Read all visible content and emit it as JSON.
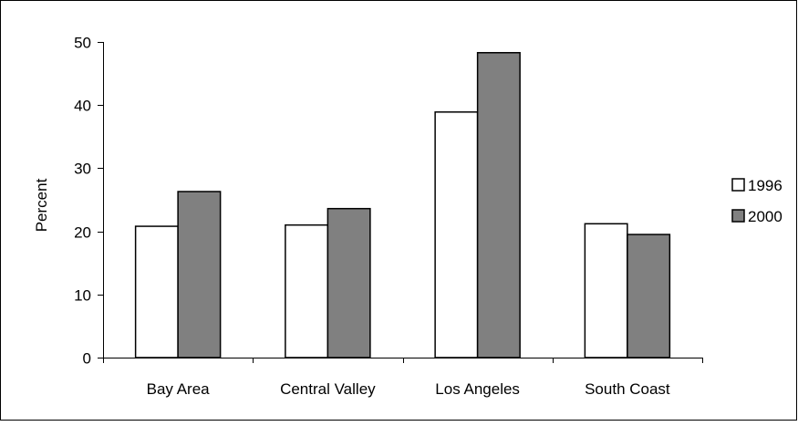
{
  "chart_data": {
    "type": "bar",
    "title": "",
    "xlabel": "",
    "ylabel": "Percent",
    "ylim": [
      0,
      50
    ],
    "yticks": [
      0,
      10,
      20,
      30,
      40,
      50
    ],
    "categories": [
      "Bay Area",
      "Central Valley",
      "Los Angeles",
      "South Coast"
    ],
    "series": [
      {
        "name": "1996",
        "values": [
          20.8,
          21.0,
          38.9,
          21.2
        ],
        "color": "#ffffff"
      },
      {
        "name": "2000",
        "values": [
          26.3,
          23.6,
          48.3,
          19.5
        ],
        "color": "#808080"
      }
    ],
    "grid": false,
    "legend_position": "right"
  }
}
